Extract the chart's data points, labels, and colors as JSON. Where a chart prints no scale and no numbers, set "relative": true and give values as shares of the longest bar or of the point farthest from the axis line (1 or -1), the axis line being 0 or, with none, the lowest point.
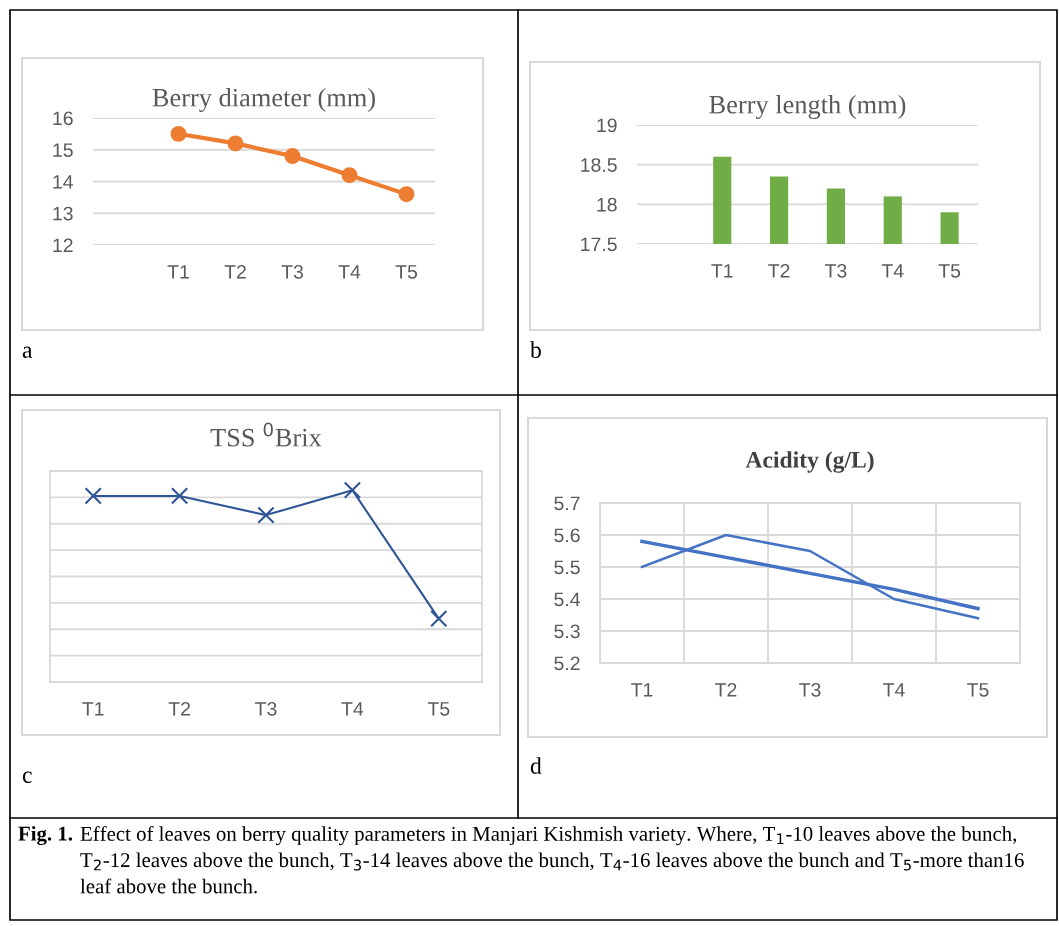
{
  "chart_data": [
    {
      "type": "line",
      "title": "Berry diameter (mm)",
      "categories": [
        null,
        "T1",
        "T2",
        "T3",
        "T4",
        "T5"
      ],
      "series": [
        {
          "color": "#ed7d31",
          "values": [
            null,
            15.5,
            15.2,
            14.8,
            14.2,
            13.6
          ]
        }
      ],
      "ylim": [
        12,
        16
      ],
      "yticks": [
        12,
        13,
        14,
        15,
        16
      ],
      "grid": "y",
      "marker": "circle",
      "annotations": [
        "a"
      ]
    },
    {
      "type": "bar",
      "title": "Berry length (mm)",
      "categories": [
        null,
        "T1",
        "T2",
        "T3",
        "T4",
        "T5"
      ],
      "series": [
        {
          "color": "#70ad47",
          "values": [
            null,
            18.6,
            18.35,
            18.2,
            18.1,
            17.9
          ]
        }
      ],
      "ylim": [
        17.5,
        19
      ],
      "yticks": [
        17.5,
        18,
        18.5,
        19
      ],
      "grid": "y",
      "annotations": [
        "b"
      ]
    },
    {
      "type": "line",
      "title": "TSS $^{0}$Brix",
      "categories": [
        "T1",
        "T2",
        "T3",
        "T4",
        "T5"
      ],
      "relative": true,
      "series": [
        {
          "color": "#2f5597",
          "values": [
            0.97,
            0.97,
            0.87,
            1,
            0.33
          ]
        }
      ],
      "grid": "y",
      "marker": "cross",
      "tick_labels": "x",
      "annotations": [
        "c"
      ]
    },
    {
      "type": "line",
      "title": "Acidity (g/L)",
      "categories": [
        "T1",
        "T2",
        "T3",
        "T4",
        "T5"
      ],
      "series": [
        {
          "color": "#4472c4",
          "values": [
            5.5,
            5.6,
            5.55,
            5.4,
            5.34
          ]
        },
        {
          "color": "#4472c4",
          "values": [
            5.58,
            5.53,
            5.48,
            5.43,
            5.37
          ]
        }
      ],
      "ylim": [
        5.2,
        5.7
      ],
      "yticks": [
        5.2,
        5.3,
        5.4,
        5.5,
        5.6,
        5.7
      ],
      "grid": true,
      "annotations": [
        "d",
        "Fig. 1.",
        "Effect of leaves on berry quality parameters in Manjari Kishmish variety. Where, T$_{1}$-10 leaves above the bunch, T$_{2}$-12 leaves above the bunch, T$_{3}$-14 leaves above the bunch, T$_{4}$-16 leaves above the bunch and T$_{5}$-more than16 leaf above the bunch."
      ]
    }
  ]
}
